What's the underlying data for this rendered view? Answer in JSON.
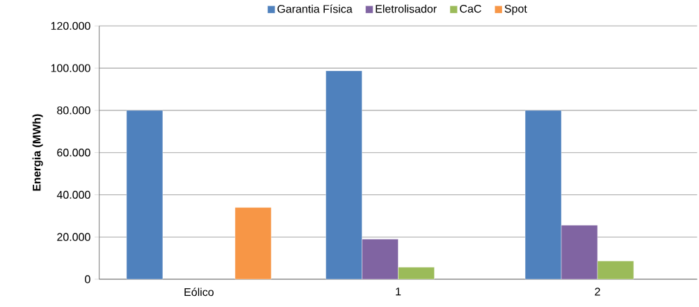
{
  "chart_data": {
    "type": "bar",
    "ylabel": "Energia (MWh)",
    "categories": [
      "Eólico",
      "1",
      "2"
    ],
    "series": [
      {
        "name": "Garantia Física",
        "color": "#4f81bd",
        "values": [
          80000,
          98700,
          80000
        ]
      },
      {
        "name": "Eletrolisador",
        "color": "#8064a2",
        "values": [
          null,
          19000,
          25600
        ]
      },
      {
        "name": "CaC",
        "color": "#9bbb59",
        "values": [
          null,
          5700,
          8600
        ]
      },
      {
        "name": "Spot",
        "color": "#f79646",
        "values": [
          34000,
          null,
          null
        ]
      }
    ],
    "ylim": [
      0,
      120000
    ],
    "yticks": [
      0,
      {
        "value": 20000,
        "label": "20.000"
      },
      {
        "value": 40000,
        "label": "40.000"
      },
      {
        "value": 60000,
        "label": "60.000"
      },
      {
        "value": 80000,
        "label": "80.000"
      },
      {
        "value": 100000,
        "label": "100.000"
      },
      {
        "value": 120000,
        "label": "120.000"
      }
    ],
    "grid": "y",
    "legend": "top"
  }
}
